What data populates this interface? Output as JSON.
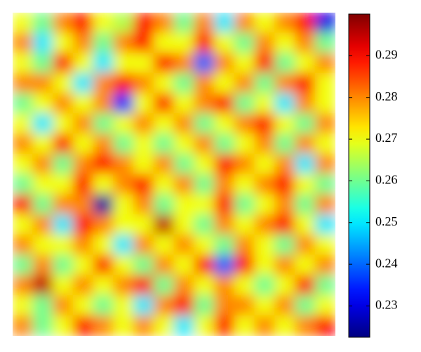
{
  "chart_data": {
    "type": "heatmap",
    "colormap": "jet",
    "clim": [
      0.2225,
      0.3
    ],
    "colorbar_ticks": [
      0.23,
      0.24,
      0.25,
      0.26,
      0.27,
      0.28,
      0.29
    ],
    "values": [
      [
        0.27,
        0.26,
        0.28,
        0.29,
        0.27,
        0.265,
        0.29,
        0.28,
        0.26,
        0.28,
        0.25,
        0.28,
        0.27,
        0.28,
        0.29,
        0.23
      ],
      [
        0.28,
        0.25,
        0.27,
        0.28,
        0.26,
        0.28,
        0.29,
        0.27,
        0.27,
        0.29,
        0.27,
        0.26,
        0.28,
        0.27,
        0.28,
        0.26
      ],
      [
        0.27,
        0.26,
        0.29,
        0.27,
        0.25,
        0.27,
        0.27,
        0.29,
        0.28,
        0.24,
        0.28,
        0.27,
        0.29,
        0.26,
        0.27,
        0.28
      ],
      [
        0.28,
        0.28,
        0.27,
        0.25,
        0.28,
        0.29,
        0.28,
        0.27,
        0.26,
        0.28,
        0.27,
        0.28,
        0.26,
        0.28,
        0.29,
        0.27
      ],
      [
        0.26,
        0.27,
        0.28,
        0.27,
        0.28,
        0.235,
        0.27,
        0.29,
        0.27,
        0.28,
        0.29,
        0.26,
        0.27,
        0.25,
        0.28,
        0.27
      ],
      [
        0.27,
        0.25,
        0.27,
        0.28,
        0.26,
        0.27,
        0.28,
        0.27,
        0.28,
        0.26,
        0.27,
        0.28,
        0.29,
        0.27,
        0.26,
        0.28
      ],
      [
        0.28,
        0.27,
        0.29,
        0.27,
        0.28,
        0.26,
        0.27,
        0.26,
        0.27,
        0.28,
        0.26,
        0.27,
        0.28,
        0.26,
        0.28,
        0.27
      ],
      [
        0.27,
        0.28,
        0.26,
        0.28,
        0.29,
        0.28,
        0.27,
        0.28,
        0.26,
        0.27,
        0.29,
        0.28,
        0.27,
        0.28,
        0.25,
        0.28
      ],
      [
        0.26,
        0.27,
        0.27,
        0.29,
        0.27,
        0.28,
        0.29,
        0.27,
        0.28,
        0.26,
        0.28,
        0.27,
        0.28,
        0.29,
        0.27,
        0.26
      ],
      [
        0.29,
        0.26,
        0.28,
        0.28,
        0.225,
        0.27,
        0.28,
        0.26,
        0.27,
        0.27,
        0.29,
        0.26,
        0.27,
        0.28,
        0.26,
        0.28
      ],
      [
        0.27,
        0.28,
        0.25,
        0.29,
        0.28,
        0.27,
        0.27,
        0.295,
        0.27,
        0.26,
        0.28,
        0.27,
        0.28,
        0.29,
        0.27,
        0.25
      ],
      [
        0.28,
        0.27,
        0.27,
        0.28,
        0.27,
        0.25,
        0.28,
        0.27,
        0.28,
        0.27,
        0.26,
        0.28,
        0.27,
        0.26,
        0.28,
        0.27
      ],
      [
        0.26,
        0.28,
        0.26,
        0.27,
        0.29,
        0.27,
        0.26,
        0.28,
        0.27,
        0.29,
        0.24,
        0.29,
        0.27,
        0.28,
        0.27,
        0.28
      ],
      [
        0.28,
        0.295,
        0.27,
        0.28,
        0.27,
        0.28,
        0.29,
        0.26,
        0.28,
        0.27,
        0.28,
        0.27,
        0.26,
        0.27,
        0.29,
        0.26
      ],
      [
        0.27,
        0.26,
        0.28,
        0.27,
        0.26,
        0.27,
        0.25,
        0.28,
        0.29,
        0.26,
        0.28,
        0.28,
        0.27,
        0.28,
        0.26,
        0.27
      ],
      [
        0.28,
        0.26,
        0.27,
        0.29,
        0.28,
        0.27,
        0.28,
        0.27,
        0.25,
        0.27,
        0.29,
        0.27,
        0.28,
        0.27,
        0.28,
        0.29
      ]
    ]
  }
}
